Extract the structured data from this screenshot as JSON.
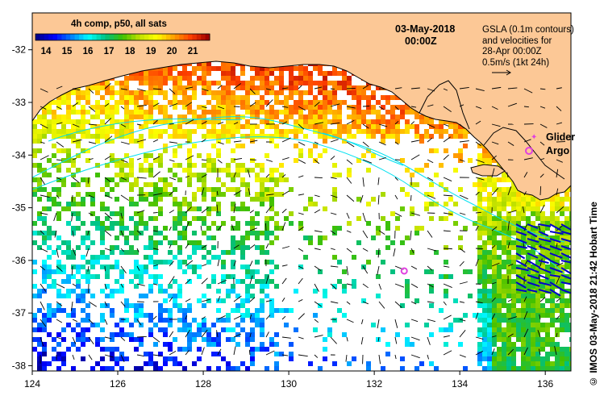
{
  "chart_data": {
    "type": "heatmap",
    "title": "4h comp, p50, all sats",
    "date": "03-May-2018",
    "time": "00:00Z",
    "xlim": [
      124,
      136.6
    ],
    "ylim": [
      -38.1,
      -31.3
    ],
    "x_ticks": [
      "124",
      "126",
      "128",
      "130",
      "132",
      "134",
      "136"
    ],
    "y_ticks": [
      "-32",
      "-33",
      "-34",
      "-35",
      "-36",
      "-37",
      "-38"
    ],
    "colorbar": {
      "ticks": [
        "14",
        "15",
        "16",
        "17",
        "18",
        "19",
        "20",
        "21"
      ],
      "range": [
        13.5,
        21.8
      ],
      "colors": [
        "#00008f",
        "#0000ff",
        "#0080ff",
        "#00ffff",
        "#00c080",
        "#40c000",
        "#c0e000",
        "#ffff00",
        "#ffa000",
        "#ff4000",
        "#a00000"
      ]
    },
    "legend": {
      "gsla_line1": "GSLA (0.1m contours)",
      "gsla_line2": "and velocities for",
      "gsla_line3": "28-Apr 00:00Z",
      "scale_label": "0.5m/s (1kt 24h)",
      "glider_label": "Glider",
      "argo_label": "Argo"
    },
    "argo_float": {
      "lon": 132.7,
      "lat": -36.2
    },
    "glider": {
      "lon": 135.3,
      "lat": -33.6
    },
    "credit": "© IMOS 03-May-2018 21:42 Hobart Time"
  },
  "colors": {
    "land": "#fcc896",
    "glider": "#e040e0",
    "argo": "#e040e0",
    "contour": "#00e0f0",
    "velocity": "#000000",
    "strong_velocity": "#0000cc"
  }
}
